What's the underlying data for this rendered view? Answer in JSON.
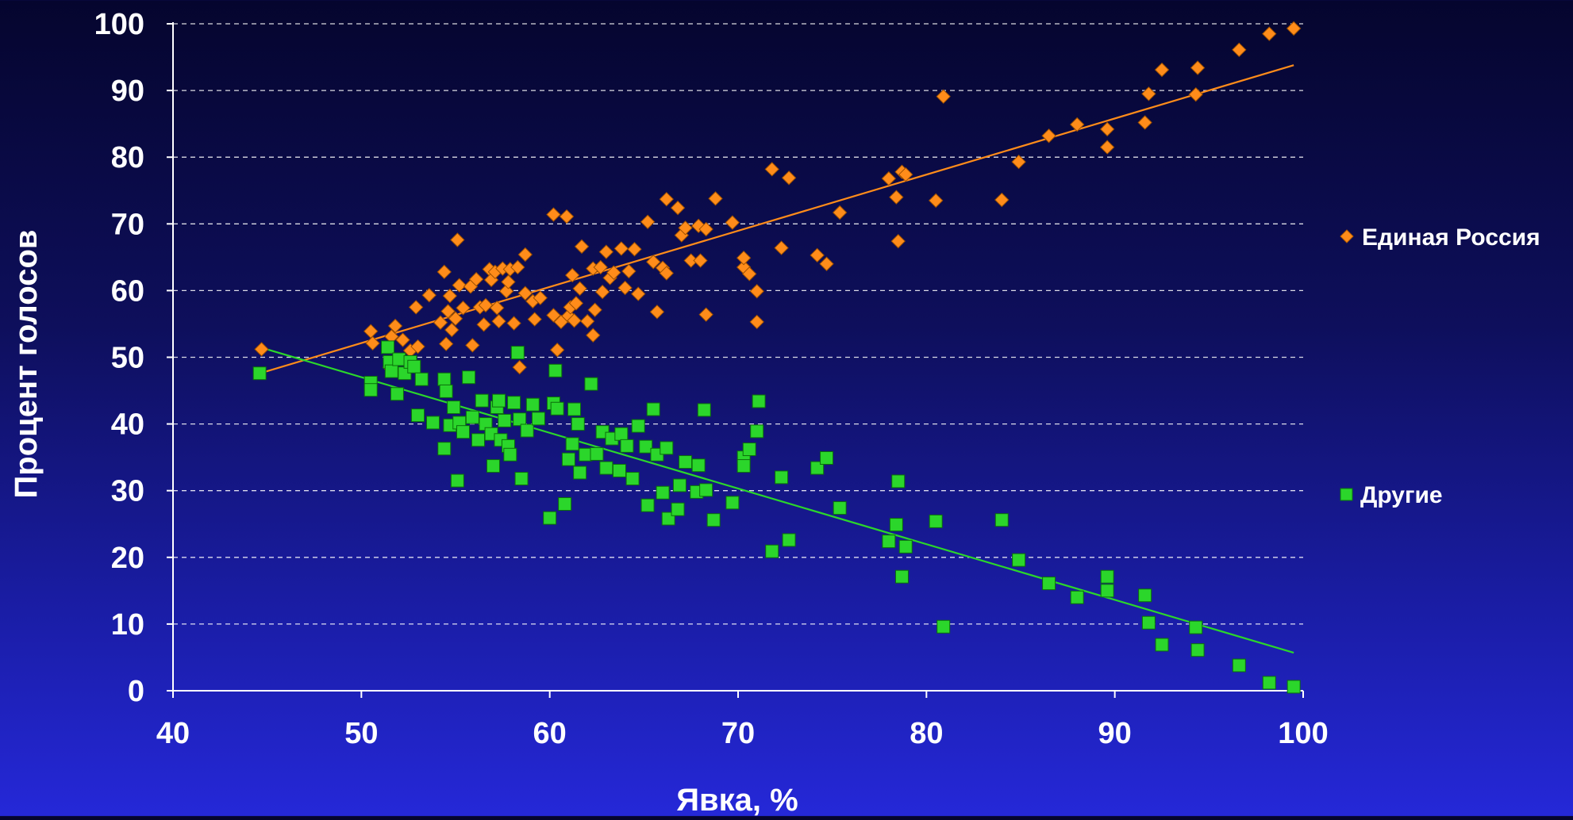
{
  "chart_data": {
    "type": "scatter",
    "title": "",
    "xlabel": "Явка, %",
    "ylabel": "Процент голосов",
    "xlim": [
      40,
      100
    ],
    "ylim": [
      0,
      100
    ],
    "x_ticks": [
      40,
      50,
      60,
      70,
      80,
      90,
      100
    ],
    "y_ticks": [
      0,
      10,
      20,
      30,
      40,
      50,
      60,
      70,
      80,
      90,
      100
    ],
    "grid": "horizontal dashed",
    "legend_position": "right",
    "series": [
      {
        "name": "Единая Россия",
        "color": "#ff8c1a",
        "marker": "diamond",
        "trendline": [
          [
            44.5,
            47.5
          ],
          [
            99.5,
            93.8
          ]
        ],
        "points": [
          [
            44.7,
            51.2
          ],
          [
            50.5,
            53.9
          ],
          [
            50.6,
            52.1
          ],
          [
            51.5,
            48.5
          ],
          [
            51.6,
            53.1
          ],
          [
            51.8,
            54.7
          ],
          [
            52.2,
            52.6
          ],
          [
            52.6,
            51.0
          ],
          [
            53.0,
            51.6
          ],
          [
            52.9,
            57.5
          ],
          [
            53.6,
            59.3
          ],
          [
            54.2,
            55.2
          ],
          [
            54.4,
            62.8
          ],
          [
            54.5,
            52.0
          ],
          [
            54.6,
            56.9
          ],
          [
            54.7,
            59.2
          ],
          [
            54.8,
            54.1
          ],
          [
            55.0,
            55.8
          ],
          [
            55.1,
            67.6
          ],
          [
            55.2,
            60.8
          ],
          [
            55.4,
            57.4
          ],
          [
            55.8,
            60.6
          ],
          [
            55.9,
            51.8
          ],
          [
            56.1,
            61.7
          ],
          [
            56.3,
            57.5
          ],
          [
            56.5,
            54.9
          ],
          [
            56.6,
            57.8
          ],
          [
            56.8,
            63.2
          ],
          [
            56.9,
            61.6
          ],
          [
            57.1,
            62.8
          ],
          [
            57.2,
            57.4
          ],
          [
            57.3,
            55.4
          ],
          [
            57.5,
            63.3
          ],
          [
            57.7,
            59.9
          ],
          [
            57.8,
            61.3
          ],
          [
            57.9,
            63.2
          ],
          [
            58.1,
            55.1
          ],
          [
            58.3,
            63.5
          ],
          [
            58.4,
            48.5
          ],
          [
            58.7,
            65.4
          ],
          [
            58.7,
            59.6
          ],
          [
            59.1,
            58.4
          ],
          [
            59.2,
            55.7
          ],
          [
            59.5,
            58.9
          ],
          [
            60.2,
            71.4
          ],
          [
            60.2,
            56.3
          ],
          [
            60.4,
            51.1
          ],
          [
            60.6,
            55.3
          ],
          [
            60.9,
            71.1
          ],
          [
            61.0,
            56.2
          ],
          [
            61.1,
            57.5
          ],
          [
            61.2,
            62.3
          ],
          [
            61.3,
            55.5
          ],
          [
            61.4,
            58.1
          ],
          [
            61.6,
            60.3
          ],
          [
            61.7,
            66.6
          ],
          [
            62.0,
            55.4
          ],
          [
            62.3,
            63.3
          ],
          [
            62.3,
            53.3
          ],
          [
            62.4,
            57.1
          ],
          [
            62.7,
            63.5
          ],
          [
            62.8,
            59.8
          ],
          [
            63.0,
            65.8
          ],
          [
            63.2,
            61.9
          ],
          [
            63.4,
            62.7
          ],
          [
            63.8,
            66.3
          ],
          [
            64.0,
            60.4
          ],
          [
            64.2,
            62.9
          ],
          [
            64.5,
            66.2
          ],
          [
            64.7,
            59.5
          ],
          [
            65.2,
            70.3
          ],
          [
            65.5,
            64.3
          ],
          [
            65.7,
            56.8
          ],
          [
            66.0,
            63.4
          ],
          [
            66.2,
            62.6
          ],
          [
            66.2,
            73.7
          ],
          [
            66.8,
            72.4
          ],
          [
            67.0,
            68.3
          ],
          [
            67.2,
            69.4
          ],
          [
            67.5,
            64.5
          ],
          [
            67.9,
            69.7
          ],
          [
            68.0,
            64.5
          ],
          [
            68.3,
            69.2
          ],
          [
            68.3,
            56.4
          ],
          [
            68.8,
            73.8
          ],
          [
            69.7,
            70.2
          ],
          [
            70.3,
            63.5
          ],
          [
            70.3,
            64.9
          ],
          [
            70.6,
            62.5
          ],
          [
            71.0,
            59.9
          ],
          [
            71.0,
            55.3
          ],
          [
            71.8,
            78.2
          ],
          [
            72.3,
            66.4
          ],
          [
            72.7,
            76.9
          ],
          [
            74.2,
            65.3
          ],
          [
            74.7,
            64.0
          ],
          [
            75.4,
            71.7
          ],
          [
            78.0,
            76.8
          ],
          [
            78.4,
            74.0
          ],
          [
            78.5,
            67.4
          ],
          [
            78.7,
            77.8
          ],
          [
            78.9,
            77.4
          ],
          [
            80.5,
            73.5
          ],
          [
            80.9,
            89.1
          ],
          [
            84.0,
            73.6
          ],
          [
            84.9,
            79.3
          ],
          [
            86.5,
            83.2
          ],
          [
            88.0,
            84.9
          ],
          [
            89.6,
            84.2
          ],
          [
            89.6,
            81.5
          ],
          [
            91.6,
            85.2
          ],
          [
            91.8,
            89.5
          ],
          [
            92.5,
            93.1
          ],
          [
            94.3,
            89.4
          ],
          [
            94.4,
            93.4
          ],
          [
            96.6,
            96.1
          ],
          [
            98.2,
            98.5
          ],
          [
            99.5,
            99.3
          ]
        ]
      },
      {
        "name": "Другие",
        "color": "#2bd62b",
        "marker": "square",
        "trendline": [
          [
            44.5,
            51.6
          ],
          [
            99.5,
            5.7
          ]
        ],
        "points": [
          [
            44.6,
            47.6
          ],
          [
            50.5,
            46.2
          ],
          [
            50.5,
            45.1
          ],
          [
            51.4,
            51.5
          ],
          [
            51.5,
            49.3
          ],
          [
            51.6,
            47.9
          ],
          [
            51.9,
            44.5
          ],
          [
            52.0,
            49.7
          ],
          [
            52.3,
            47.6
          ],
          [
            52.6,
            49.3
          ],
          [
            52.8,
            48.6
          ],
          [
            53.0,
            41.3
          ],
          [
            53.2,
            46.7
          ],
          [
            53.8,
            40.2
          ],
          [
            54.4,
            46.7
          ],
          [
            54.4,
            36.3
          ],
          [
            54.5,
            44.9
          ],
          [
            54.7,
            39.8
          ],
          [
            54.9,
            42.5
          ],
          [
            55.1,
            31.5
          ],
          [
            55.2,
            40.2
          ],
          [
            55.4,
            38.8
          ],
          [
            55.7,
            47.0
          ],
          [
            55.9,
            41.0
          ],
          [
            56.2,
            37.6
          ],
          [
            56.4,
            43.5
          ],
          [
            56.6,
            40.0
          ],
          [
            56.9,
            38.5
          ],
          [
            57.0,
            33.7
          ],
          [
            57.2,
            42.5
          ],
          [
            57.3,
            43.5
          ],
          [
            57.4,
            37.6
          ],
          [
            57.6,
            40.5
          ],
          [
            57.8,
            36.7
          ],
          [
            57.9,
            35.4
          ],
          [
            58.1,
            43.2
          ],
          [
            58.3,
            50.7
          ],
          [
            58.4,
            40.7
          ],
          [
            58.5,
            31.8
          ],
          [
            58.8,
            39.0
          ],
          [
            59.1,
            42.9
          ],
          [
            59.4,
            40.8
          ],
          [
            60.0,
            25.9
          ],
          [
            60.2,
            43.1
          ],
          [
            60.3,
            48.0
          ],
          [
            60.4,
            42.3
          ],
          [
            60.8,
            28.0
          ],
          [
            61.0,
            34.7
          ],
          [
            61.2,
            37.0
          ],
          [
            61.3,
            42.2
          ],
          [
            61.5,
            40.0
          ],
          [
            61.6,
            32.7
          ],
          [
            61.9,
            35.4
          ],
          [
            62.2,
            46.0
          ],
          [
            62.5,
            35.5
          ],
          [
            62.8,
            38.8
          ],
          [
            63.0,
            33.4
          ],
          [
            63.3,
            37.8
          ],
          [
            63.7,
            33.0
          ],
          [
            63.8,
            38.5
          ],
          [
            64.1,
            36.7
          ],
          [
            64.4,
            31.8
          ],
          [
            64.7,
            39.7
          ],
          [
            65.1,
            36.6
          ],
          [
            65.2,
            27.8
          ],
          [
            65.5,
            42.2
          ],
          [
            65.7,
            35.4
          ],
          [
            66.0,
            29.7
          ],
          [
            66.2,
            36.4
          ],
          [
            66.3,
            25.8
          ],
          [
            66.8,
            27.2
          ],
          [
            66.9,
            30.8
          ],
          [
            67.2,
            34.3
          ],
          [
            67.8,
            29.8
          ],
          [
            67.9,
            33.8
          ],
          [
            68.2,
            42.1
          ],
          [
            68.3,
            30.1
          ],
          [
            68.7,
            25.6
          ],
          [
            69.7,
            28.2
          ],
          [
            70.3,
            35.0
          ],
          [
            70.3,
            33.7
          ],
          [
            70.6,
            36.2
          ],
          [
            71.0,
            38.9
          ],
          [
            71.1,
            43.4
          ],
          [
            71.8,
            20.9
          ],
          [
            72.3,
            32.0
          ],
          [
            72.7,
            22.6
          ],
          [
            74.2,
            33.4
          ],
          [
            74.7,
            34.9
          ],
          [
            75.4,
            27.4
          ],
          [
            78.0,
            22.4
          ],
          [
            78.4,
            24.9
          ],
          [
            78.5,
            31.4
          ],
          [
            78.7,
            17.1
          ],
          [
            78.9,
            21.6
          ],
          [
            80.5,
            25.4
          ],
          [
            80.9,
            9.6
          ],
          [
            84.0,
            25.6
          ],
          [
            84.9,
            19.6
          ],
          [
            86.5,
            16.1
          ],
          [
            88.0,
            14.0
          ],
          [
            89.6,
            15.0
          ],
          [
            89.6,
            17.1
          ],
          [
            91.6,
            14.3
          ],
          [
            91.8,
            10.2
          ],
          [
            92.5,
            6.9
          ],
          [
            94.3,
            9.5
          ],
          [
            94.4,
            6.1
          ],
          [
            96.6,
            3.8
          ],
          [
            98.2,
            1.2
          ],
          [
            99.5,
            0.6
          ]
        ]
      }
    ]
  }
}
